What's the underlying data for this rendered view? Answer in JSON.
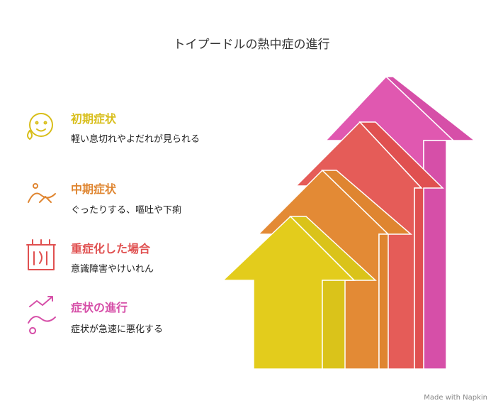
{
  "title": "トイプードルの熱中症の進行",
  "stages": [
    {
      "title": "初期症状",
      "description": "軽い息切れやよだれが見られる"
    },
    {
      "title": "中期症状",
      "description": "ぐったりする、嘔吐や下痢"
    },
    {
      "title": "重症化した場合",
      "description": "意識障害やけいれん"
    },
    {
      "title": "症状の進行",
      "description": "症状が急速に悪化する"
    }
  ],
  "footer": "Made with Napkin"
}
